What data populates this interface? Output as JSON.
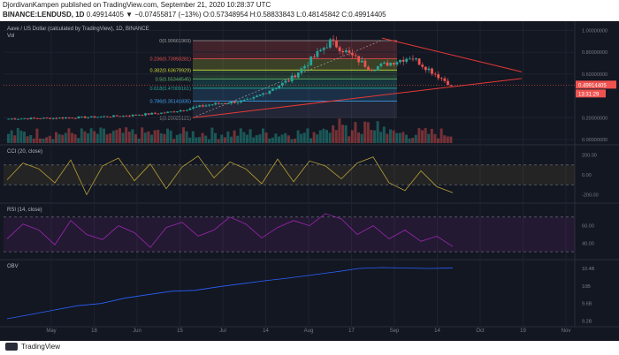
{
  "header": {
    "line1": "DjordivanKampen published on TradingView.com, September 21, 2020 10:28:37 UTC",
    "symbol": "BINANCE:LENDUSD, 1D",
    "ohlc": "0.49914405 ▼ −0.07455817 (−13%) O:0.57348954 H:0.58833843 L:0.48145842 C:0.49914405"
  },
  "panes": {
    "main_title": "Aave / US Dollar (calculated by TradingView), 1D, BINANCE",
    "vol_label": "Vol",
    "cci_title": "CCI (20, close)",
    "rsi_title": "RSI (14, close)",
    "obv_title": "OBV"
  },
  "badges": {
    "price": "0.49914405",
    "countdown": "13:31:29"
  },
  "footer": {
    "brand": "TradingView"
  },
  "colors": {
    "background": "#131722",
    "up": "#26a69a",
    "down": "#ef5350",
    "trendline": "#e53935",
    "cci": "#b8a037",
    "rsi": "#9c27b0",
    "obv": "#2962ff",
    "price_badge": "#ef5350",
    "grid": "#1e2230"
  },
  "chart_data": [
    {
      "type": "candlestick",
      "title": "Aave / US Dollar (calculated by TradingView), 1D, BINANCE",
      "x_tick_labels": [
        "May",
        "18",
        "Jun",
        "15",
        "Jul",
        "14",
        "Aug",
        "17",
        "Sep",
        "14",
        "Oct",
        "19",
        "Nov"
      ],
      "y_tick_labels": [
        "1.00000000",
        "0.80000000",
        "0.60000000",
        "0.20000000",
        "0.00000000"
      ],
      "ylim": [
        0,
        1.02
      ],
      "candles": [
        {
          "date": "May 1",
          "close": 0.19
        },
        {
          "date": "May 15",
          "close": 0.195
        },
        {
          "date": "Jun 1",
          "close": 0.205
        },
        {
          "date": "Jun 15",
          "close": 0.22
        },
        {
          "date": "Jul 1",
          "close": 0.25
        },
        {
          "date": "Jul 14",
          "close": 0.32
        },
        {
          "date": "Aug 1",
          "close": 0.36
        },
        {
          "date": "Aug 17",
          "close": 0.55
        },
        {
          "date": "Aug 28",
          "close": 0.9
        },
        {
          "date": "Sep 5",
          "close": 0.65
        },
        {
          "date": "Sep 14",
          "close": 0.76
        },
        {
          "date": "Sep 21",
          "close": 0.4991
        }
      ],
      "fibonacci": [
        {
          "label": "0(0.90661969)",
          "value": 0.90661969,
          "color": "#9e9e9e"
        },
        {
          "label": "0.236(0.73993281)",
          "value": 0.73993281,
          "color": "#ef5350"
        },
        {
          "label": "0.382(0.63679929)",
          "value": 0.63679929,
          "color": "#cddc39"
        },
        {
          "label": "0.5(0.55344545)",
          "value": 0.55344545,
          "color": "#66bb6a"
        },
        {
          "label": "0.618(0.47009161)",
          "value": 0.47009161,
          "color": "#26a69a"
        },
        {
          "label": "0.786(0.35141835)",
          "value": 0.35141835,
          "color": "#42a5f5"
        },
        {
          "label": "1(0.20025121)",
          "value": 0.20025121,
          "color": "#9e9e9e"
        }
      ],
      "last_price": 0.49914405
    },
    {
      "type": "line",
      "title": "CCI (20, close)",
      "y_tick_labels": [
        "200.00",
        "0.00",
        "-200.00"
      ],
      "bands": [
        100,
        -100
      ],
      "values": [
        -50,
        120,
        60,
        -80,
        150,
        -200,
        90,
        170,
        -60,
        110,
        -140,
        80,
        190,
        -30,
        130,
        60,
        -90,
        160,
        -70,
        140,
        90,
        -40,
        120,
        180,
        -80,
        -160,
        40,
        -120,
        -180
      ]
    },
    {
      "type": "line",
      "title": "RSI (14, close)",
      "y_tick_labels": [
        "60.00",
        "40.00"
      ],
      "bands": [
        70,
        30
      ],
      "values": [
        45,
        62,
        55,
        38,
        66,
        50,
        44,
        60,
        52,
        35,
        58,
        64,
        48,
        55,
        70,
        62,
        46,
        58,
        66,
        60,
        74,
        68,
        50,
        60,
        45,
        55,
        42,
        48,
        36
      ]
    },
    {
      "type": "line",
      "title": "OBV",
      "y_tick_labels": [
        "10.4B",
        "10B",
        "9.6B",
        "9.2B"
      ],
      "values": [
        9.25,
        9.35,
        9.45,
        9.55,
        9.6,
        9.72,
        9.8,
        9.88,
        9.9,
        9.98,
        10.05,
        10.12,
        10.18,
        10.25,
        10.32,
        10.4,
        10.42,
        10.41,
        10.4,
        10.41
      ]
    }
  ]
}
